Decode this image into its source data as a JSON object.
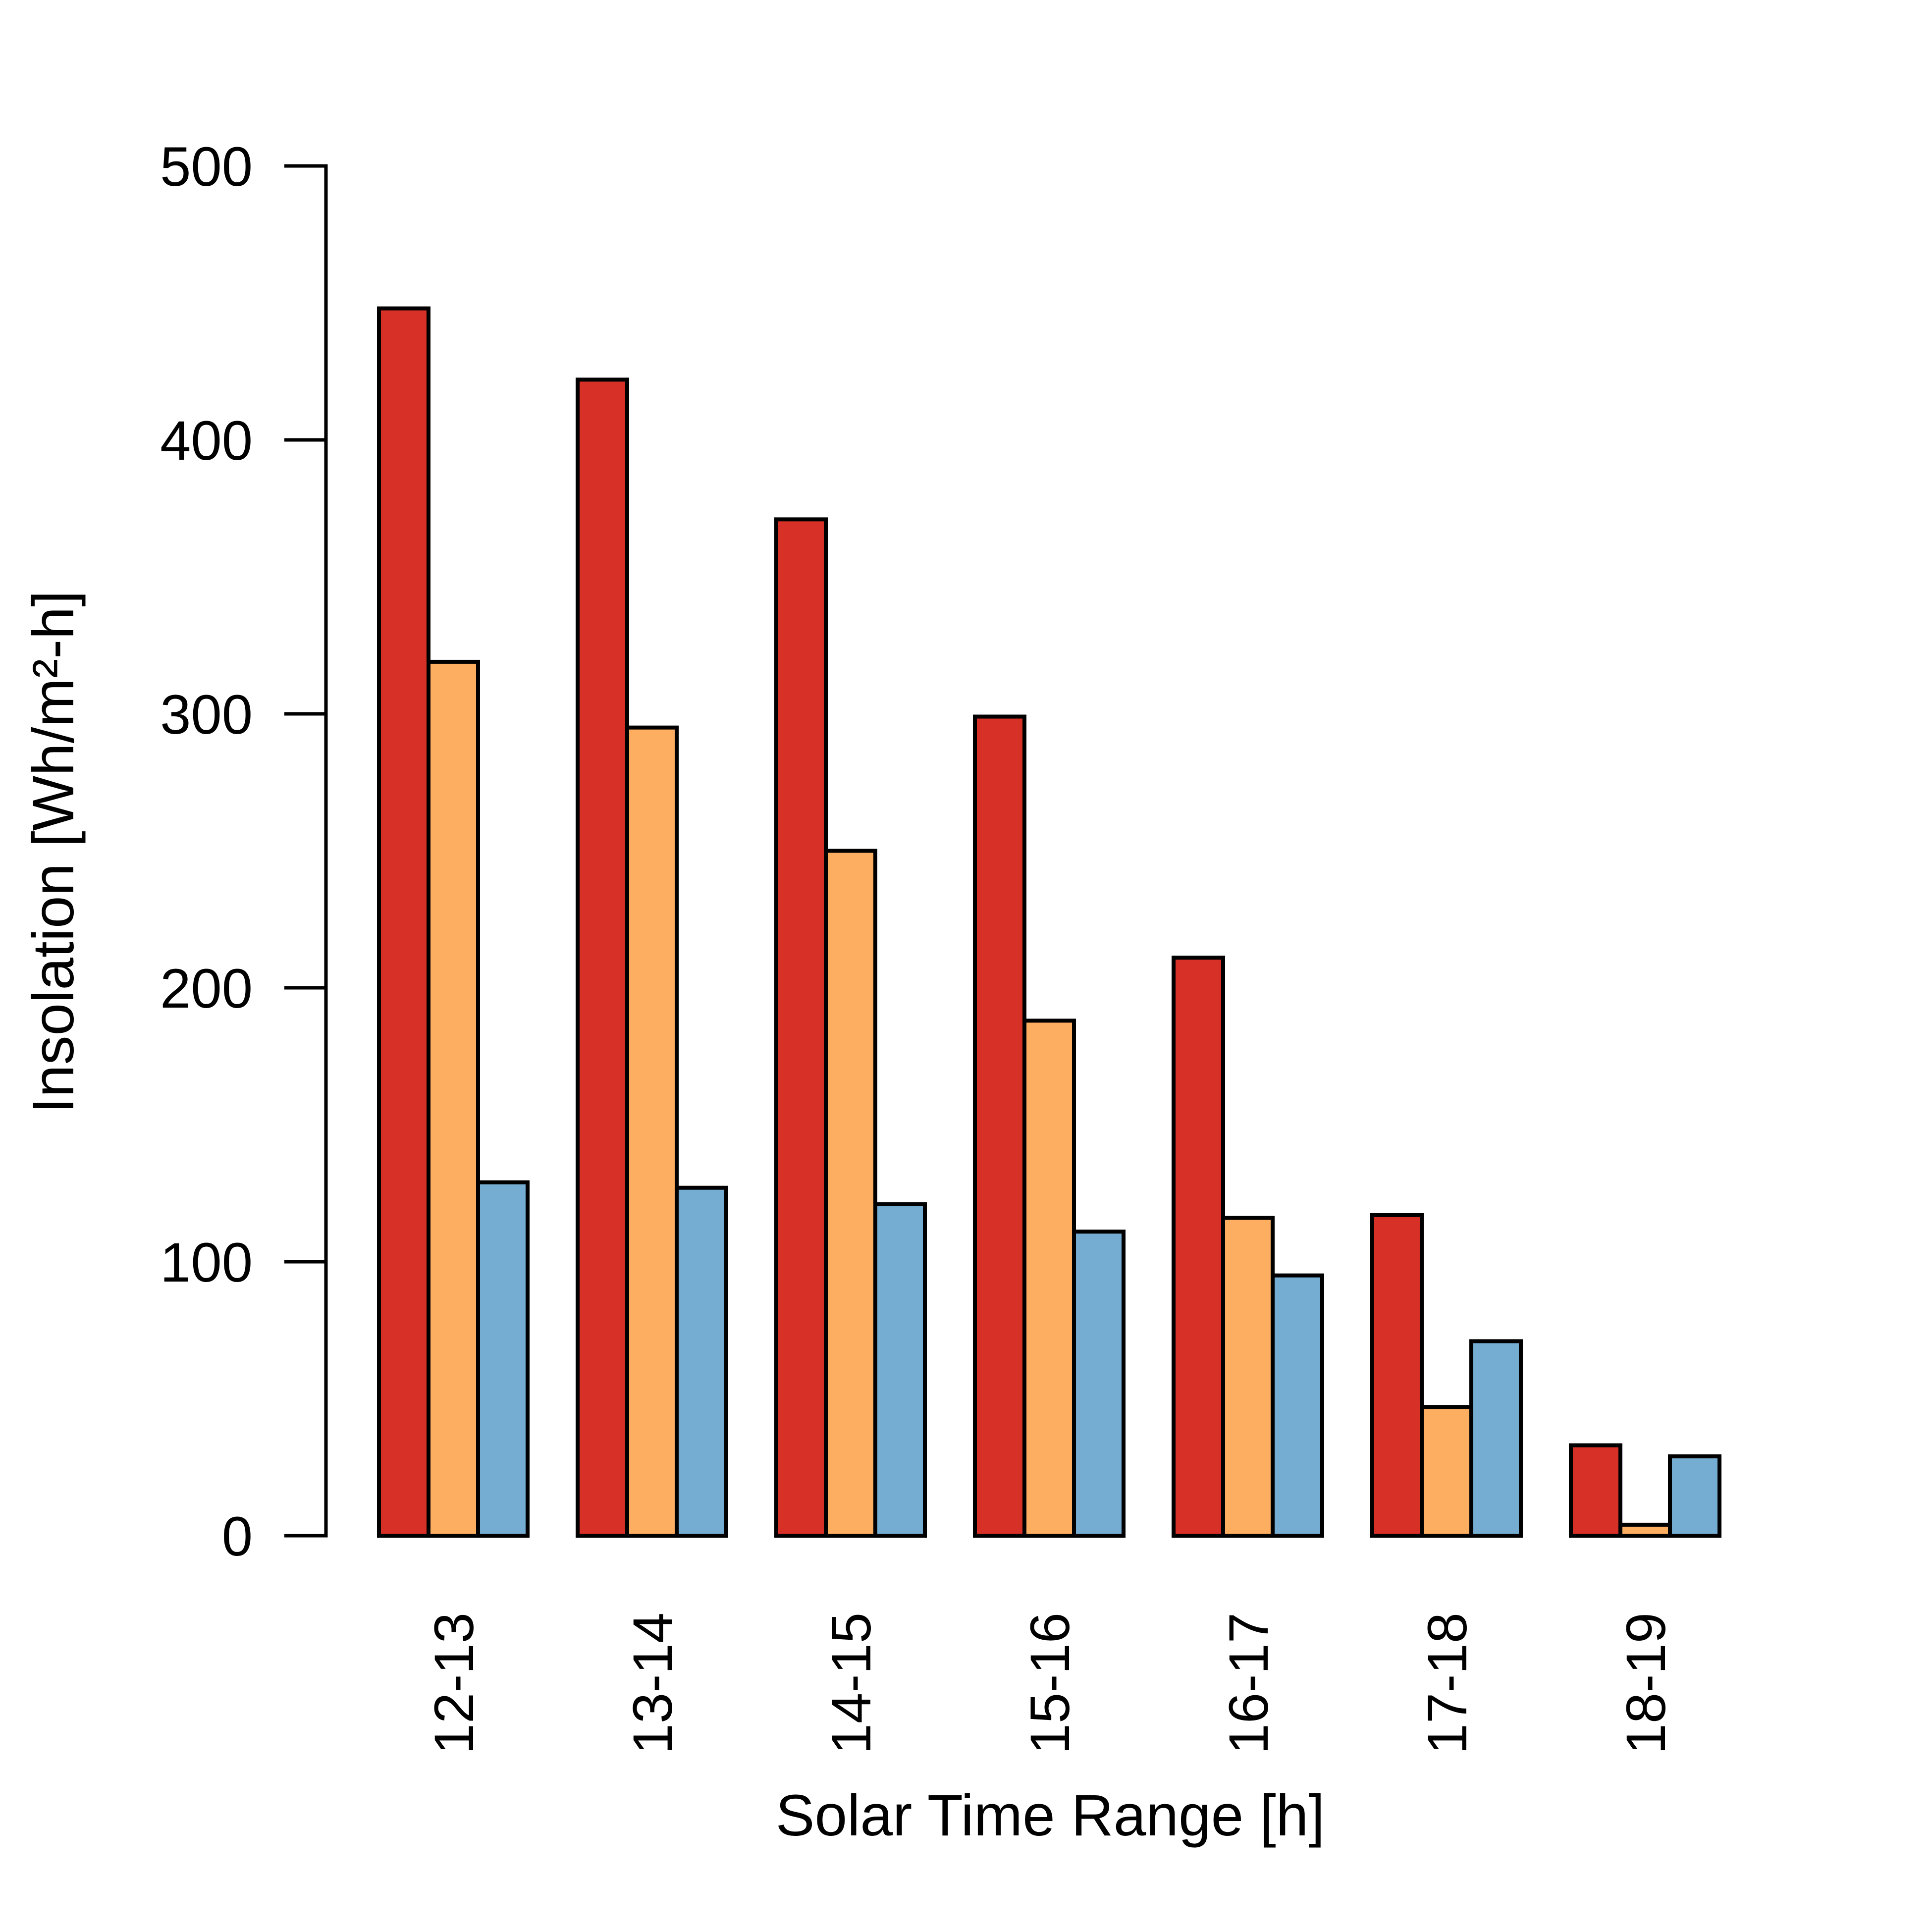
{
  "chart_data": {
    "type": "bar",
    "title": "",
    "xlabel": "Solar Time Range [h]",
    "ylabel": "Insolation [Wh/m²-h]",
    "ylim": [
      0,
      500
    ],
    "yticks": [
      0,
      100,
      200,
      300,
      400,
      500
    ],
    "categories": [
      "12-13",
      "13-14",
      "14-15",
      "15-16",
      "16-17",
      "17-18",
      "18-19"
    ],
    "series": [
      {
        "color": "#d73027",
        "values": [
          448,
          422,
          371,
          299,
          211,
          117,
          33
        ]
      },
      {
        "color": "#fdae61",
        "values": [
          319,
          295,
          250,
          188,
          116,
          47,
          4
        ]
      },
      {
        "color": "#74add1",
        "values": [
          129,
          127,
          121,
          111,
          95,
          71,
          29
        ]
      }
    ],
    "grid": false,
    "legend": "none"
  }
}
